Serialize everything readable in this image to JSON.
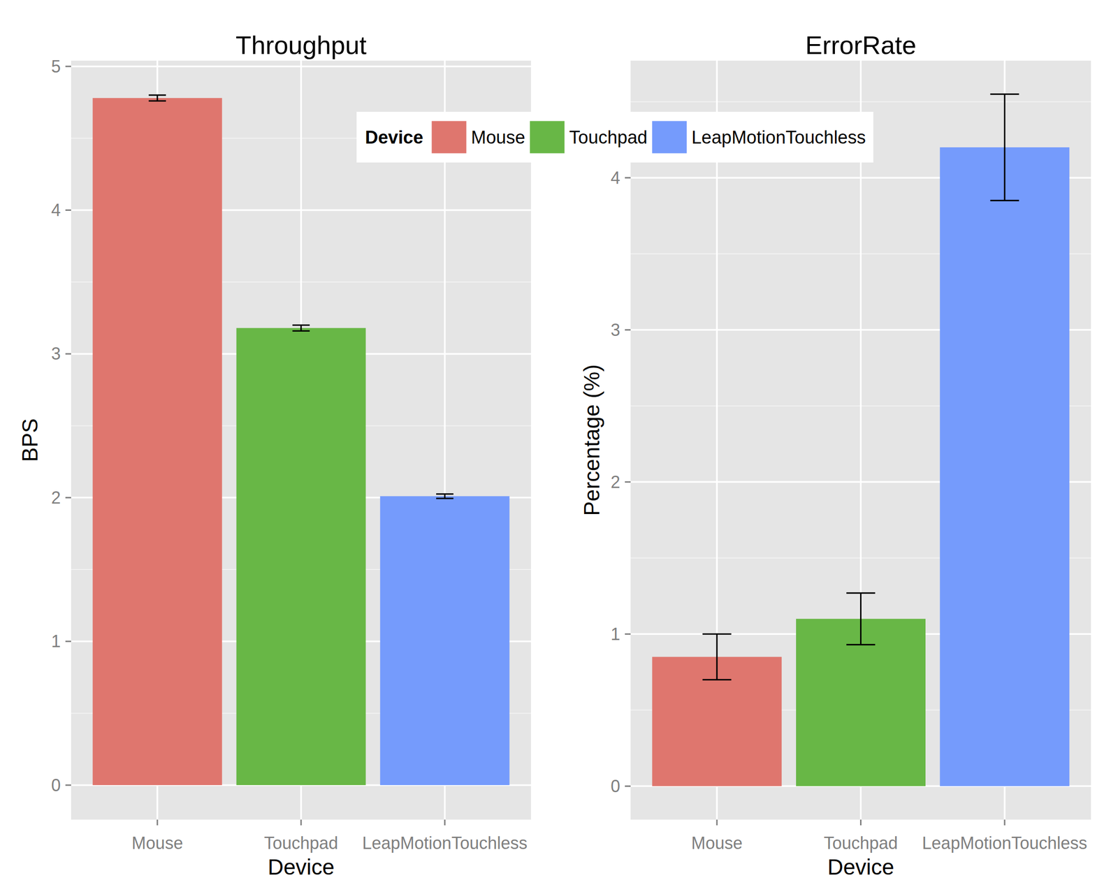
{
  "chart_data": [
    {
      "type": "bar",
      "title": "Throughput",
      "x_label": "Device",
      "y_label": "BPS",
      "categories": [
        "Mouse",
        "Touchpad",
        "LeapMotionTouchless"
      ],
      "values": [
        4.78,
        3.18,
        2.01
      ],
      "errors": [
        0.02,
        0.02,
        0.015
      ],
      "colors": [
        "#df766e",
        "#68b746",
        "#759bfc"
      ],
      "ylim": [
        -0.24,
        5.04
      ],
      "yticks": [
        0,
        1,
        2,
        3,
        4,
        5
      ],
      "grid": true,
      "legend": "top",
      "legend_title": "Device"
    },
    {
      "type": "bar",
      "title": "ErrorRate",
      "x_label": "Device",
      "y_label": "Percentage (%)",
      "categories": [
        "Mouse",
        "Touchpad",
        "LeapMotionTouchless"
      ],
      "values": [
        0.85,
        1.1,
        4.2
      ],
      "errors": [
        0.15,
        0.17,
        0.35
      ],
      "colors": [
        "#df766e",
        "#68b746",
        "#759bfc"
      ],
      "ylim": [
        -0.22,
        4.77
      ],
      "yticks": [
        0,
        1,
        2,
        3,
        4
      ],
      "grid": true
    }
  ]
}
